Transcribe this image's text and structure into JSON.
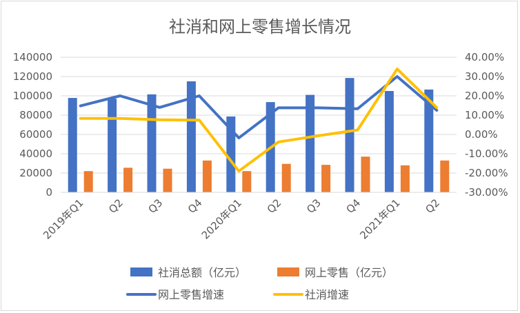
{
  "chart_data": {
    "type": "bar",
    "title": "社消和网上零售增长情况",
    "categories": [
      "2019年Q1",
      "Q2",
      "Q3",
      "Q4",
      "2020年Q1",
      "Q2",
      "Q3",
      "Q4",
      "2021年Q1",
      "Q2"
    ],
    "ylim_left": [
      0,
      140000
    ],
    "yticks_left": [
      "0",
      "20000",
      "40000",
      "60000",
      "80000",
      "100000",
      "120000",
      "140000"
    ],
    "ylim_right": [
      -30,
      40
    ],
    "yticks_right": [
      "-30.00%",
      "-20.00%",
      "-10.00%",
      "0.00%",
      "10.00%",
      "20.00%",
      "30.00%",
      "40.00%"
    ],
    "grid": true,
    "legend_position": "bottom",
    "series": [
      {
        "name": "社消总额（亿元）",
        "type": "bar",
        "axis": "left",
        "color": "#4472C4",
        "values": [
          97800,
          97000,
          101500,
          115000,
          78600,
          93500,
          101000,
          118500,
          105000,
          106500
        ]
      },
      {
        "name": "网上零售（亿元）",
        "type": "bar",
        "axis": "left",
        "color": "#ED7D31",
        "values": [
          22000,
          25500,
          24500,
          33000,
          22000,
          29500,
          28500,
          37000,
          28000,
          33000
        ]
      },
      {
        "name": "网上零售增速",
        "type": "line",
        "axis": "right",
        "color": "#4472C4",
        "values": [
          14.8,
          20.0,
          14.0,
          20.0,
          -1.8,
          13.8,
          13.8,
          13.3,
          30.0,
          12.5
        ]
      },
      {
        "name": "社消增速",
        "type": "line",
        "axis": "right",
        "color": "#FFC000",
        "values": [
          8.3,
          8.3,
          7.6,
          7.4,
          -19.0,
          -3.9,
          -0.7,
          2.3,
          33.9,
          13.9
        ]
      }
    ]
  }
}
